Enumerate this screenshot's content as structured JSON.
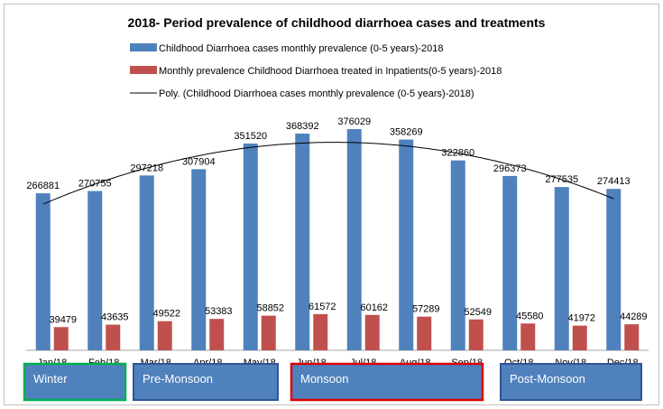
{
  "chart_data": {
    "type": "bar",
    "title": "2018- Period prevalence of childhood diarrhoea cases and treatments",
    "categories": [
      "Jan/18",
      "Feb/18",
      "Mar/18",
      "Apr/18",
      "May/18",
      "Jun/18",
      "Jul/18",
      "Aug/18",
      "Sep/18",
      "Oct/18",
      "Nov/18",
      "Dec/18"
    ],
    "series": [
      {
        "name": "Childhood Diarrhoea cases monthly prevalence (0-5 years)-2018",
        "color": "#4F81BD",
        "values": [
          266881,
          270755,
          297218,
          307904,
          351520,
          368392,
          376029,
          358269,
          322860,
          296373,
          277535,
          274413
        ]
      },
      {
        "name": "Monthly prevalence Childhood Diarrhoea treated in Inpatients(0-5 years)-2018",
        "color": "#C0504D",
        "values": [
          39479,
          43635,
          49522,
          53383,
          58852,
          61572,
          60162,
          57289,
          52549,
          45580,
          41972,
          44289
        ]
      }
    ],
    "trendline": {
      "name": "Poly. (Childhood Diarrhoea cases monthly prevalence (0-5 years)-2018)",
      "type": "polynomial",
      "color": "#000000"
    },
    "ylim": [
      0,
      400000
    ],
    "grid": false,
    "legend": "top",
    "seasons": [
      {
        "label": "Winter",
        "color": "#4F81BD",
        "border": "#00B050"
      },
      {
        "label": "Pre-Monsoon",
        "color": "#4F81BD",
        "border": "#2F5597"
      },
      {
        "label": "Monsoon",
        "color": "#4F81BD",
        "border": "#E00000"
      },
      {
        "label": "Post-Monsoon",
        "color": "#4F81BD",
        "border": "#2F5597"
      }
    ]
  }
}
